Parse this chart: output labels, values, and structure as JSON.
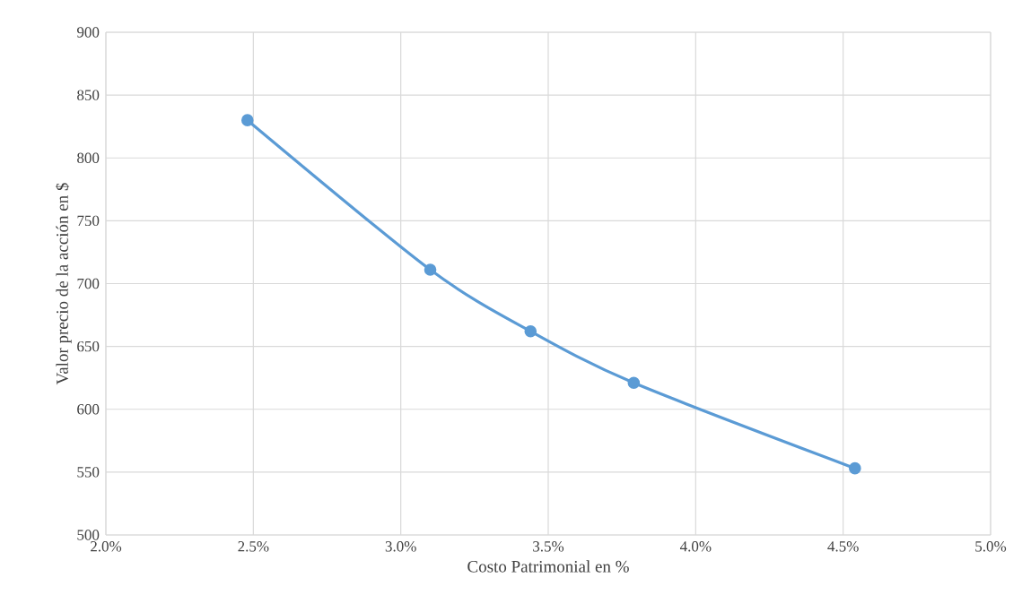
{
  "chart_data": {
    "type": "line",
    "xlabel": "Costo Patrimonial en %",
    "ylabel": "Valor precio de la acción en $",
    "x": [
      2.48,
      3.1,
      3.44,
      3.79,
      4.54
    ],
    "series": [
      {
        "color": "#5b9bd5",
        "values": [
          830,
          711,
          662,
          621,
          553
        ]
      }
    ],
    "xlim": [
      2.0,
      5.0
    ],
    "xticks": [
      {
        "value": 2.0,
        "label": "2.0%"
      },
      {
        "value": 2.5,
        "label": "2.5%"
      },
      {
        "value": 3.0,
        "label": "3.0%"
      },
      {
        "value": 3.5,
        "label": "3.5%"
      },
      {
        "value": 4.0,
        "label": "4.0%"
      },
      {
        "value": 4.5,
        "label": "4.5%"
      },
      {
        "value": 5.0,
        "label": "5.0%"
      }
    ],
    "ylim": [
      500,
      900
    ],
    "yticks": [
      500,
      550,
      600,
      650,
      700,
      750,
      800,
      850,
      900
    ],
    "grid": true,
    "marker": "circle",
    "line_style": "solid",
    "legend": false
  }
}
